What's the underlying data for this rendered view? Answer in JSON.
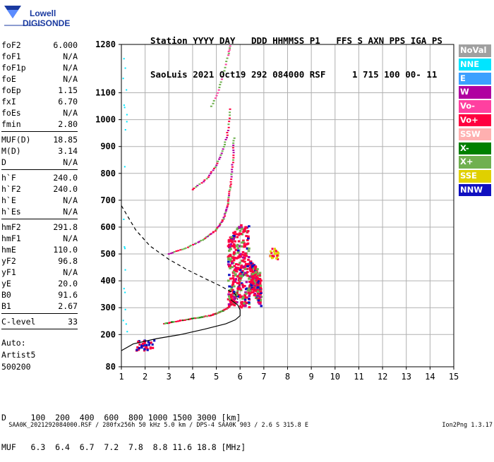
{
  "logo": {
    "line1": "Lowell",
    "line2": "DIGISONDE"
  },
  "header": {
    "row1": "Station YYYY DAY   DDD HHMMSS P1   FFS S AXN PPS IGA PS",
    "row2": "SaoLuis 2021 Oct19 292 084000 RSF     1 715 100 00- 11"
  },
  "params_group1": [
    {
      "name": "foF2",
      "value": "6.000"
    },
    {
      "name": "foF1",
      "value": "N/A"
    },
    {
      "name": "foF1p",
      "value": "N/A"
    },
    {
      "name": "foE",
      "value": "N/A"
    },
    {
      "name": "foEp",
      "value": "1.15"
    },
    {
      "name": "fxI",
      "value": "6.70"
    },
    {
      "name": "foEs",
      "value": "N/A"
    },
    {
      "name": "fmin",
      "value": "2.80"
    }
  ],
  "params_group2": [
    {
      "name": "MUF(D)",
      "value": "18.85"
    },
    {
      "name": "M(D)",
      "value": "3.14"
    },
    {
      "name": "D",
      "value": "N/A"
    }
  ],
  "params_group3": [
    {
      "name": "h`F",
      "value": "240.0"
    },
    {
      "name": "h`F2",
      "value": "240.0"
    },
    {
      "name": "h`E",
      "value": "N/A"
    },
    {
      "name": "h`Es",
      "value": "N/A"
    }
  ],
  "params_group4": [
    {
      "name": "hmF2",
      "value": "291.8"
    },
    {
      "name": "hmF1",
      "value": "N/A"
    },
    {
      "name": "hmE",
      "value": "110.0"
    },
    {
      "name": "yF2",
      "value": "96.8"
    },
    {
      "name": "yF1",
      "value": "N/A"
    },
    {
      "name": "yE",
      "value": "20.0"
    },
    {
      "name": "B0",
      "value": "91.6"
    },
    {
      "name": "B1",
      "value": "2.67"
    }
  ],
  "clevel": {
    "name": "C-level",
    "value": "33"
  },
  "auto": {
    "line1": "Auto:",
    "line2": "Artist5",
    "line3": "500200"
  },
  "legend": [
    {
      "label": "NoVal",
      "color": "#a0a0a0"
    },
    {
      "label": "NNE",
      "color": "#00e5ff"
    },
    {
      "label": "E",
      "color": "#3ba0ff"
    },
    {
      "label": "W",
      "color": "#b000a0"
    },
    {
      "label": "Vo-",
      "color": "#ff40a0"
    },
    {
      "label": "Vo+",
      "color": "#ff0040"
    },
    {
      "label": "SSW",
      "color": "#ffb0b0"
    },
    {
      "label": "X-",
      "color": "#008000"
    },
    {
      "label": "X+",
      "color": "#70b050"
    },
    {
      "label": "SSE",
      "color": "#e0d000"
    },
    {
      "label": "NNW",
      "color": "#1010c0"
    }
  ],
  "muf_table": {
    "row1": "D     100  200  400  600  800 1000 1500 3000 [km]",
    "row2": "MUF   6.3  6.4  6.7  7.2  7.8  8.8 11.6 18.8 [MHz]"
  },
  "footer": {
    "left": "SAA0K_2021292084000.RSF / 280fx256h 50 kHz 5.0 km / DPS-4 SAA0K 903 / 2.6 S 315.8 E",
    "right": "Ion2Png 1.3.17"
  },
  "chart_data": {
    "type": "scatter",
    "x_ticks": [
      1,
      2,
      3,
      4,
      5,
      6,
      7,
      8,
      9,
      10,
      11,
      12,
      13,
      14,
      15
    ],
    "y_ticks": [
      80,
      200,
      300,
      400,
      500,
      600,
      700,
      800,
      900,
      1000,
      1100,
      1280
    ],
    "xlim": [
      1,
      15
    ],
    "ylim": [
      80,
      1280
    ],
    "grid": true,
    "virtual_height_trace": [
      [
        2.8,
        240
      ],
      [
        3.5,
        252
      ],
      [
        4.2,
        262
      ],
      [
        4.8,
        272
      ],
      [
        5.2,
        285
      ],
      [
        5.5,
        300
      ],
      [
        5.7,
        320
      ],
      [
        5.85,
        345
      ],
      [
        5.95,
        380
      ],
      [
        6.0,
        430
      ]
    ],
    "second_hop_trace": [
      [
        3.0,
        500
      ],
      [
        3.8,
        525
      ],
      [
        4.5,
        555
      ],
      [
        5.0,
        590
      ],
      [
        5.3,
        630
      ],
      [
        5.5,
        690
      ],
      [
        5.6,
        760
      ],
      [
        5.7,
        850
      ],
      [
        5.75,
        940
      ]
    ],
    "third_hop_trace": [
      [
        4.0,
        740
      ],
      [
        4.6,
        780
      ],
      [
        5.0,
        830
      ],
      [
        5.3,
        890
      ],
      [
        5.5,
        960
      ],
      [
        5.6,
        1050
      ]
    ],
    "fourth_hop_trace": [
      [
        4.8,
        1050
      ],
      [
        5.1,
        1110
      ],
      [
        5.3,
        1170
      ],
      [
        5.5,
        1240
      ],
      [
        5.6,
        1280
      ]
    ],
    "profile_solid": [
      [
        1.0,
        140
      ],
      [
        1.5,
        165
      ],
      [
        2.5,
        185
      ],
      [
        3.5,
        200
      ],
      [
        4.5,
        220
      ],
      [
        5.4,
        240
      ],
      [
        5.8,
        255
      ],
      [
        6.0,
        270
      ],
      [
        6.0,
        292
      ],
      [
        5.9,
        310
      ],
      [
        5.6,
        330
      ]
    ],
    "profile_dashed": [
      [
        1.0,
        680
      ],
      [
        1.6,
        590
      ],
      [
        2.2,
        530
      ],
      [
        3.0,
        480
      ],
      [
        3.8,
        440
      ],
      [
        4.6,
        405
      ],
      [
        5.2,
        380
      ],
      [
        5.6,
        360
      ],
      [
        5.8,
        350
      ],
      [
        5.9,
        330
      ]
    ],
    "spread_cluster": {
      "x_range": [
        5.5,
        6.9
      ],
      "y_range": [
        300,
        800
      ]
    },
    "sse_cluster": [
      7.45,
      500
    ],
    "e_low_cluster": [
      2.0,
      160
    ]
  }
}
